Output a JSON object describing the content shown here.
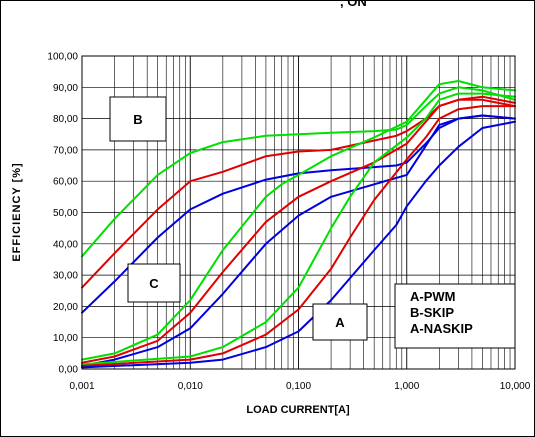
{
  "header_fragment": ", ON",
  "chart_data": {
    "type": "line",
    "title": "",
    "xlabel": "LOAD CURRENT[A]",
    "ylabel": "EFFICIENCY [%]",
    "x_scale": "log",
    "xlim": [
      0.001,
      10
    ],
    "ylim": [
      0,
      100
    ],
    "grid": true,
    "x_tick_labels": [
      "0,001",
      "0,010",
      "0,100",
      "1,000",
      "10,000"
    ],
    "y_tick_labels": [
      "0,00",
      "10,00",
      "20,00",
      "30,00",
      "40,00",
      "50,00",
      "60,00",
      "70,00",
      "80,00",
      "90,00",
      "100,00"
    ],
    "region_labels": [
      "A",
      "B",
      "C"
    ],
    "legend_lines": [
      "A-PWM",
      "B-SKIP",
      "A-NASKIP"
    ],
    "colors": {
      "green": "#00e000",
      "red": "#e00000",
      "blue": "#0000e0"
    },
    "series": [
      {
        "group": "B",
        "color": "green",
        "x": [
          0.001,
          0.002,
          0.005,
          0.01,
          0.02,
          0.05,
          0.1,
          0.2,
          0.5,
          0.8,
          1,
          1.5,
          2,
          3,
          5,
          10
        ],
        "y": [
          36,
          48,
          62,
          69,
          72.5,
          74.5,
          75,
          75.5,
          76,
          76.5,
          78,
          84,
          88,
          90,
          89,
          86
        ]
      },
      {
        "group": "B",
        "color": "red",
        "x": [
          0.001,
          0.002,
          0.005,
          0.01,
          0.02,
          0.05,
          0.1,
          0.2,
          0.5,
          0.8,
          1,
          1.5,
          2,
          3,
          5,
          10
        ],
        "y": [
          26,
          37,
          51,
          60,
          63,
          68,
          69.5,
          70,
          73,
          74.5,
          76,
          80,
          84,
          86,
          87,
          85
        ]
      },
      {
        "group": "C",
        "color": "blue",
        "x": [
          0.001,
          0.002,
          0.005,
          0.01,
          0.02,
          0.05,
          0.1,
          0.2,
          0.5,
          0.8,
          1,
          1.5,
          2,
          3,
          5,
          10
        ],
        "y": [
          18,
          28,
          42,
          51,
          56,
          60.5,
          62.5,
          63.5,
          64.5,
          65,
          66,
          72,
          77,
          80,
          81,
          80
        ]
      },
      {
        "group": "A",
        "color": "green",
        "x": [
          0.001,
          0.002,
          0.005,
          0.01,
          0.02,
          0.05,
          0.07,
          0.1,
          0.2,
          0.5,
          1,
          2,
          3,
          5,
          10
        ],
        "y": [
          3,
          5,
          11,
          22,
          38,
          55,
          59,
          62,
          68,
          74,
          79,
          91,
          92,
          90,
          89
        ]
      },
      {
        "group": "A",
        "color": "red",
        "x": [
          0.001,
          0.002,
          0.005,
          0.01,
          0.02,
          0.05,
          0.1,
          0.2,
          0.5,
          1,
          2,
          3,
          5,
          10
        ],
        "y": [
          2,
          4,
          9,
          18,
          31,
          47,
          55,
          60,
          66,
          72,
          84,
          86,
          86,
          84
        ]
      },
      {
        "group": "A",
        "color": "blue",
        "x": [
          0.001,
          0.002,
          0.005,
          0.01,
          0.02,
          0.05,
          0.1,
          0.2,
          0.5,
          1,
          1.3,
          2,
          3,
          5,
          10
        ],
        "y": [
          1,
          3,
          7,
          13,
          24,
          40,
          49,
          55,
          59,
          62,
          68,
          78,
          80,
          81,
          80
        ]
      },
      {
        "group": "A",
        "color": "green",
        "x": [
          0.001,
          0.01,
          0.02,
          0.05,
          0.1,
          0.2,
          0.3,
          0.5,
          1,
          1.5,
          2,
          3,
          5,
          10
        ],
        "y": [
          1.5,
          4,
          7,
          15,
          26,
          45,
          55,
          66,
          74,
          80,
          86,
          88,
          88,
          87
        ]
      },
      {
        "group": "A",
        "color": "red",
        "x": [
          0.001,
          0.01,
          0.02,
          0.05,
          0.1,
          0.2,
          0.3,
          0.5,
          1,
          1.5,
          2,
          3,
          5,
          10
        ],
        "y": [
          1,
          3,
          5,
          11,
          19,
          32,
          42,
          54,
          67,
          74,
          80,
          83,
          84,
          84
        ]
      },
      {
        "group": "A",
        "color": "blue",
        "x": [
          0.001,
          0.01,
          0.02,
          0.05,
          0.1,
          0.2,
          0.5,
          0.8,
          1,
          1.5,
          2,
          3,
          5,
          10
        ],
        "y": [
          0.5,
          2,
          3,
          7,
          12,
          22,
          38,
          46,
          52,
          60,
          65,
          71,
          77,
          79
        ]
      }
    ]
  }
}
